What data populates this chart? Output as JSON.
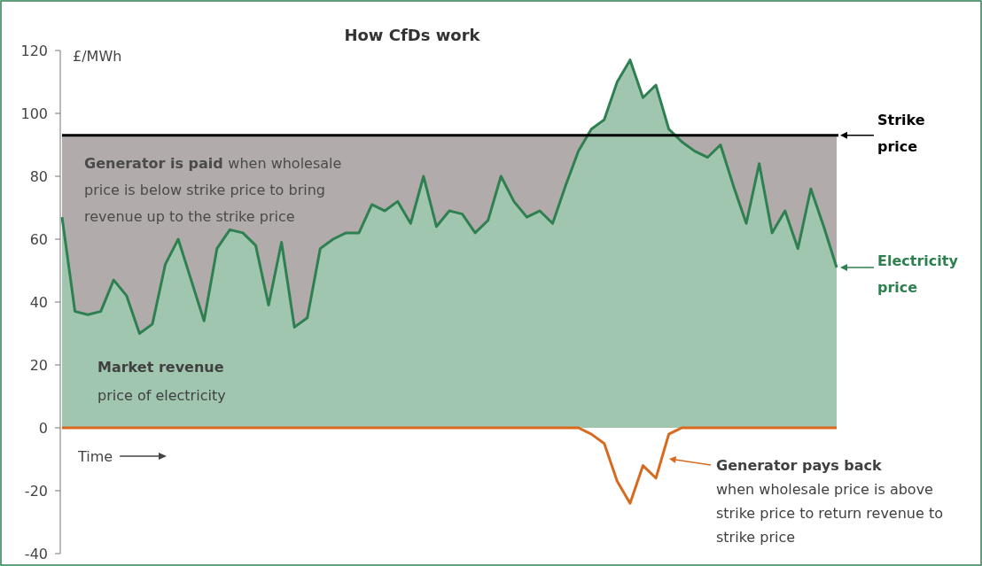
{
  "chart_data": {
    "type": "area",
    "title": "How CfDs work",
    "ylabel": "£/MWh",
    "xlabel": "Time",
    "categories": [
      null,
      null,
      null,
      null,
      null,
      null,
      null,
      null,
      null,
      null,
      null,
      null,
      null,
      null,
      null,
      null,
      null,
      null,
      null,
      null,
      null,
      null,
      null,
      null,
      null,
      null,
      null,
      null,
      null,
      null,
      null,
      null,
      null,
      null,
      null,
      null,
      null,
      null,
      null,
      null,
      null,
      null,
      null,
      null,
      null,
      null,
      null,
      null,
      null,
      null,
      null,
      null,
      null,
      null,
      null,
      null,
      null,
      null,
      null,
      null,
      null
    ],
    "series": [
      {
        "name": "Electricity price",
        "color": "#2e8050",
        "values": [
          67,
          37,
          36,
          37,
          47,
          42,
          30,
          33,
          52,
          60,
          47,
          34,
          57,
          63,
          62,
          58,
          39,
          59,
          32,
          35,
          57,
          60,
          62,
          62,
          71,
          69,
          72,
          65,
          80,
          64,
          69,
          68,
          62,
          66,
          80,
          72,
          67,
          69,
          65,
          77,
          88,
          95,
          98,
          110,
          117,
          105,
          109,
          95,
          91,
          88,
          86,
          90,
          77,
          65,
          84,
          62,
          69,
          57,
          76,
          64,
          51
        ]
      },
      {
        "type": "line",
        "color": "#d86a20",
        "values": [
          0,
          0,
          0,
          0,
          0,
          0,
          0,
          0,
          0,
          0,
          0,
          0,
          0,
          0,
          0,
          0,
          0,
          0,
          0,
          0,
          0,
          0,
          0,
          0,
          0,
          0,
          0,
          0,
          0,
          0,
          0,
          0,
          0,
          0,
          0,
          0,
          0,
          0,
          0,
          0,
          0,
          -2,
          -5,
          -17,
          -24,
          -12,
          -16,
          -2,
          0,
          0,
          0,
          0,
          0,
          0,
          0,
          0,
          0,
          0,
          0,
          0,
          0
        ]
      }
    ],
    "ylim": [
      -40,
      120
    ],
    "yticks": [
      -40,
      -20,
      0,
      20,
      40,
      60,
      80,
      100,
      120
    ],
    "ref_lines": [
      {
        "axis": "y",
        "value": 93,
        "label": "Strike price",
        "color": "#000000"
      }
    ],
    "bands": [
      {
        "axis": "y",
        "from": 0,
        "to": 93,
        "color": "#b1abab"
      }
    ],
    "annotations": [
      "Generator is paid",
      "when wholesale price is below strike price to bring revenue up to the strike price",
      "Market revenue",
      "price of electricity",
      "Generator pays back",
      "when wholesale price is above strike price to return revenue to strike price"
    ]
  }
}
